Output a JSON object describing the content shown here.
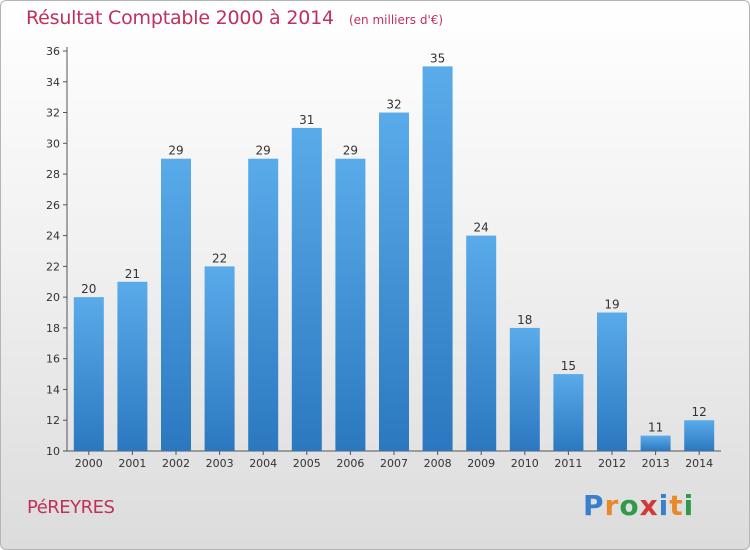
{
  "header": {
    "title": "Résultat Comptable 2000 à 2014",
    "subtitle": "(en milliers d'€)"
  },
  "footer": {
    "commune": "PéREYRES",
    "logo_text": "Proxiti",
    "logo_colors": [
      "#3a7fc9",
      "#e8892a",
      "#2f9a4a",
      "#d23a3a",
      "#3a7fc9",
      "#e8892a",
      "#2f9a4a"
    ]
  },
  "colors": {
    "bar_light": "#5aabea",
    "bar_dark": "#2b78c0",
    "axis": "#555555",
    "title": "#c0305a"
  },
  "chart_data": {
    "type": "bar",
    "title": "Résultat Comptable 2000 à 2014",
    "subtitle": "(en milliers d'€)",
    "xlabel": "",
    "ylabel": "",
    "categories": [
      "2000",
      "2001",
      "2002",
      "2003",
      "2004",
      "2005",
      "2006",
      "2007",
      "2008",
      "2009",
      "2010",
      "2011",
      "2012",
      "2013",
      "2014"
    ],
    "values": [
      20,
      21,
      29,
      22,
      29,
      31,
      29,
      32,
      35,
      24,
      18,
      15,
      19,
      11,
      12
    ],
    "ylim": [
      10,
      36
    ],
    "yticks": [
      10,
      12,
      14,
      16,
      18,
      20,
      22,
      24,
      26,
      28,
      30,
      32,
      34,
      36
    ],
    "grid": false,
    "data_labels": true
  }
}
